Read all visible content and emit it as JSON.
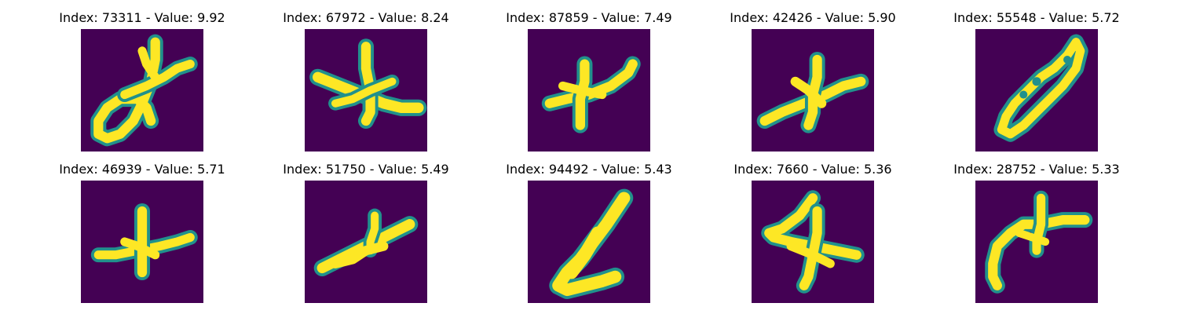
{
  "colors": {
    "background": "#440154",
    "stroke_core": "#fde725",
    "stroke_edge": "#21918c",
    "stroke_mid": "#5ec962"
  },
  "panels": [
    {
      "title": "Index: 73311 - Value: 9.92",
      "glyph": "alpha-cross"
    },
    {
      "title": "Index: 67972 - Value: 8.24",
      "glyph": "cross-wide"
    },
    {
      "title": "Index: 87859 - Value: 7.49",
      "glyph": "cross-slanted"
    },
    {
      "title": "Index: 42426 - Value: 5.90",
      "glyph": "cross-slanted-long"
    },
    {
      "title": "Index: 55548 - Value: 5.72",
      "glyph": "loop-stroke"
    },
    {
      "title": "Index: 46939 - Value: 5.71",
      "glyph": "cross-small"
    },
    {
      "title": "Index: 51750 - Value: 5.49",
      "glyph": "dash-blob"
    },
    {
      "title": "Index: 94492 - Value: 5.43",
      "glyph": "letter-l"
    },
    {
      "title": "Index: 7660 - Value: 5.36",
      "glyph": "digit-four"
    },
    {
      "title": "Index: 28752 - Value: 5.33",
      "glyph": "hook-cross"
    }
  ]
}
